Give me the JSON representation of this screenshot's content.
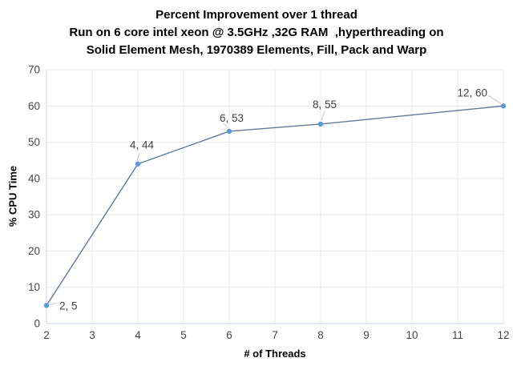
{
  "title": {
    "line1": "Percent Improvement over 1 thread",
    "line2": "Run on 6 core intel xeon @ 3.5GHz ,32G RAM  ,hyperthreading on",
    "line3": "Solid Element Mesh, 1970389 Elements, Fill, Pack and Warp"
  },
  "chart_data": {
    "type": "line",
    "x": [
      2,
      4,
      6,
      8,
      12
    ],
    "y": [
      5,
      44,
      53,
      55,
      60
    ],
    "point_labels": [
      "2, 5",
      "4, 44",
      "6, 53",
      "8, 55",
      "12, 60"
    ],
    "xlabel": "# of Threads",
    "ylabel": "% CPU Time",
    "xlim": [
      2,
      12
    ],
    "ylim": [
      0,
      70
    ],
    "xticks": [
      2,
      3,
      4,
      5,
      6,
      7,
      8,
      9,
      10,
      11,
      12
    ],
    "yticks": [
      0,
      10,
      20,
      30,
      40,
      50,
      60,
      70
    ],
    "grid": true,
    "legend": "none",
    "colors": {
      "line": "#64779a",
      "marker": "#5b9bd5",
      "gridline": "#e4e7eb",
      "axis_line": "#cfd4da",
      "tick_label": "#444444",
      "data_label": "#3f3f3f",
      "leader_line": "#bfc4cc",
      "title_text": "#000000",
      "background": "#ffffff"
    }
  }
}
